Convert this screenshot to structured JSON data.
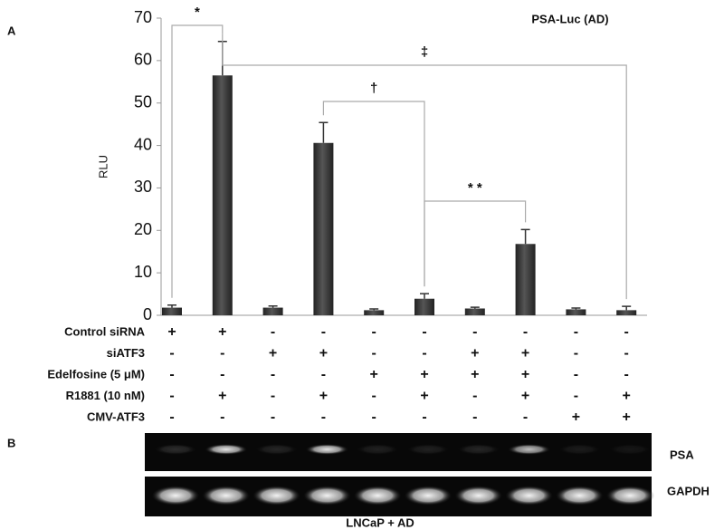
{
  "panels": [
    "A",
    "B"
  ],
  "chart_data": {
    "type": "bar",
    "title": "PSA-Luc (AD)",
    "y_label": "RLU",
    "categories": [
      null,
      null,
      null,
      null,
      null,
      null,
      null,
      null,
      null,
      null
    ],
    "values": [
      1.8,
      56.5,
      1.8,
      40.6,
      1.2,
      3.9,
      1.6,
      16.8,
      1.4,
      1.2
    ],
    "errors": [
      0.6,
      8,
      0.4,
      4.8,
      0.3,
      1.2,
      0.3,
      3.4,
      0.3,
      0.9
    ],
    "color": "#3a3a3a",
    "ylim": [
      0,
      70
    ],
    "yticks": [
      0,
      10,
      20,
      30,
      40,
      50,
      60,
      70
    ],
    "grid": false,
    "annotations": [
      "*",
      "‡",
      "†",
      "* *"
    ]
  },
  "treatments": [
    {
      "label": "Control siRNA",
      "marks": [
        "+",
        "+",
        "-",
        "-",
        "-",
        "-",
        "-",
        "-",
        "-",
        "-"
      ]
    },
    {
      "label": "siATF3",
      "marks": [
        "-",
        "-",
        "+",
        "+",
        "-",
        "-",
        "+",
        "+",
        "-",
        "-"
      ]
    },
    {
      "label": "Edelfosine (5 μM)",
      "marks": [
        "-",
        "-",
        "-",
        "-",
        "+",
        "+",
        "+",
        "+",
        "-",
        "-"
      ]
    },
    {
      "label": "R1881 (10 nM)",
      "marks": [
        "-",
        "+",
        "-",
        "+",
        "-",
        "+",
        "-",
        "+",
        "-",
        "+"
      ]
    },
    {
      "label": "CMV-ATF3",
      "marks": [
        "-",
        "-",
        "-",
        "-",
        "-",
        "-",
        "-",
        "-",
        "+",
        "+"
      ]
    }
  ],
  "gel": {
    "bands": [
      "PSA",
      "GAPDH"
    ],
    "caption": "LNCaP + AD"
  }
}
